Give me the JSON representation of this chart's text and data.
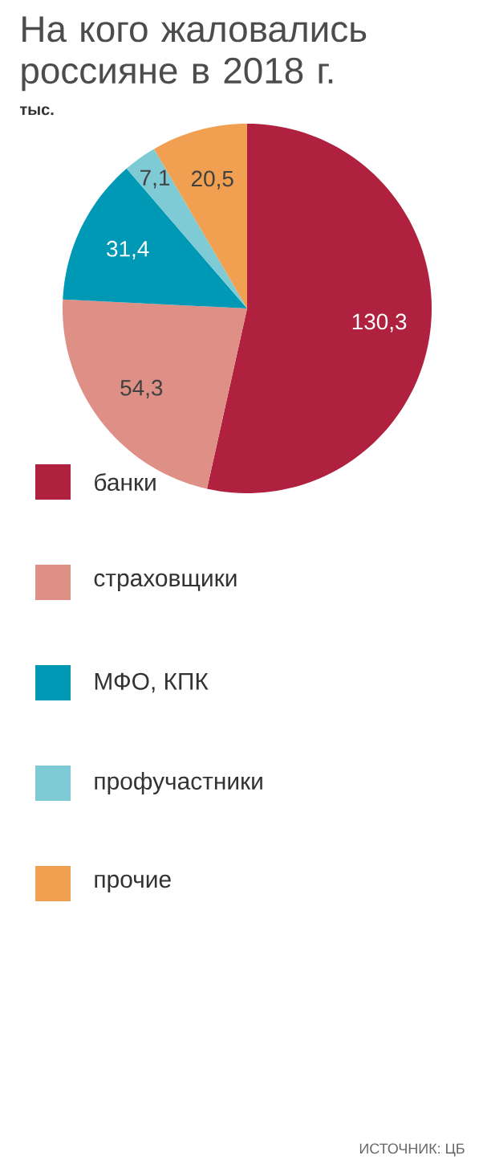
{
  "chart_data": {
    "type": "pie",
    "title": "На кого жаловались россияне в 2018 г.",
    "subtitle": "тыс.",
    "categories": [
      "банки",
      "страховщики",
      "МФО, КПК",
      "профучастники",
      "прочие"
    ],
    "values": [
      130.3,
      54.3,
      31.4,
      7.1,
      20.5
    ],
    "value_labels": [
      "130,3",
      "54,3",
      "31,4",
      "7,1",
      "20,5"
    ],
    "colors": [
      "#b0213f",
      "#de9086",
      "#0099b5",
      "#7ecbd5",
      "#f0a050"
    ],
    "legend": "bottom",
    "annotations": [
      "ИСТОЧНИК: ЦБ"
    ]
  }
}
